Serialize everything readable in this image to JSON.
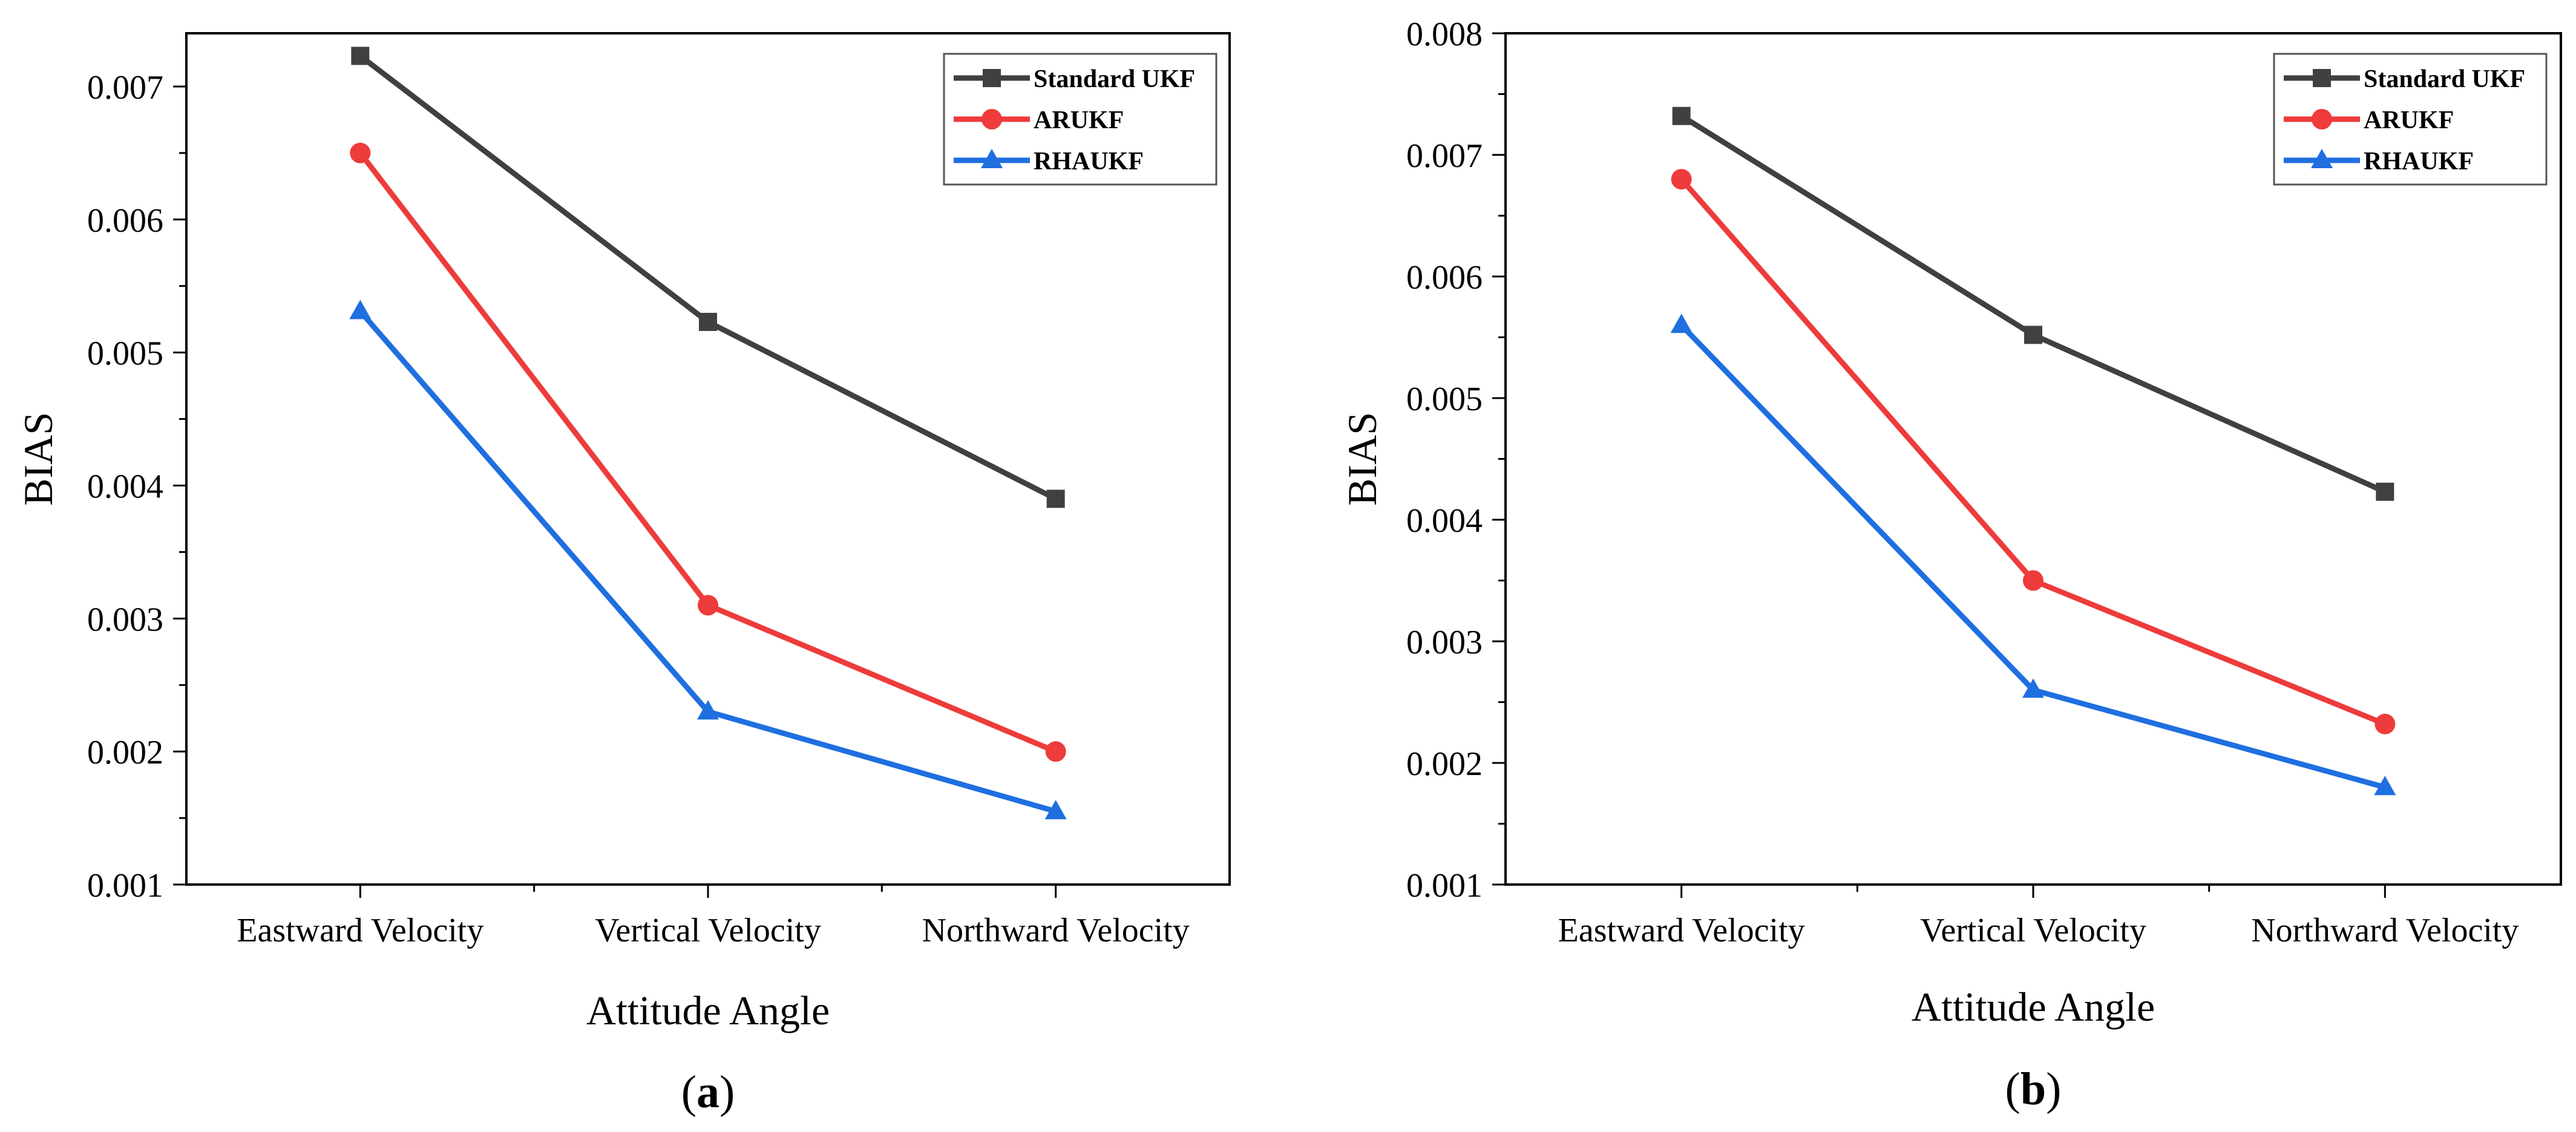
{
  "chart_data": [
    {
      "type": "line",
      "panel_label": "a",
      "xlabel": "Attitude Angle",
      "ylabel": "BIAS",
      "categories": [
        "Eastward Velocity",
        "Vertical Velocity",
        "Northward Velocity"
      ],
      "ylim": [
        0.001,
        0.0074
      ],
      "yticks": [
        "0.001",
        "0.002",
        "0.003",
        "0.004",
        "0.005",
        "0.006",
        "0.007"
      ],
      "legend_position": "top-right",
      "series": [
        {
          "name": "Standard UKF",
          "color": "#404040",
          "marker": "square",
          "values": [
            0.00723,
            0.00523,
            0.0039
          ]
        },
        {
          "name": "ARUKF",
          "color": "#ee3b3b",
          "marker": "circle",
          "values": [
            0.0065,
            0.0031,
            0.002
          ]
        },
        {
          "name": "RHAUKF",
          "color": "#1f6fe0",
          "marker": "triangle",
          "values": [
            0.00531,
            0.0023,
            0.00155
          ]
        }
      ]
    },
    {
      "type": "line",
      "panel_label": "b",
      "xlabel": "Attitude Angle",
      "ylabel": "BIAS",
      "categories": [
        "Eastward Velocity",
        "Vertical Velocity",
        "Northward Velocity"
      ],
      "ylim": [
        0.001,
        0.008
      ],
      "yticks": [
        "0.001",
        "0.002",
        "0.003",
        "0.004",
        "0.005",
        "0.006",
        "0.007",
        "0.008"
      ],
      "legend_position": "top-right",
      "series": [
        {
          "name": "Standard UKF",
          "color": "#404040",
          "marker": "square",
          "values": [
            0.00732,
            0.00552,
            0.00423
          ]
        },
        {
          "name": "ARUKF",
          "color": "#ee3b3b",
          "marker": "circle",
          "values": [
            0.0068,
            0.0035,
            0.00232
          ]
        },
        {
          "name": "RHAUKF",
          "color": "#1f6fe0",
          "marker": "triangle",
          "values": [
            0.0056,
            0.0026,
            0.0018
          ]
        }
      ]
    }
  ]
}
